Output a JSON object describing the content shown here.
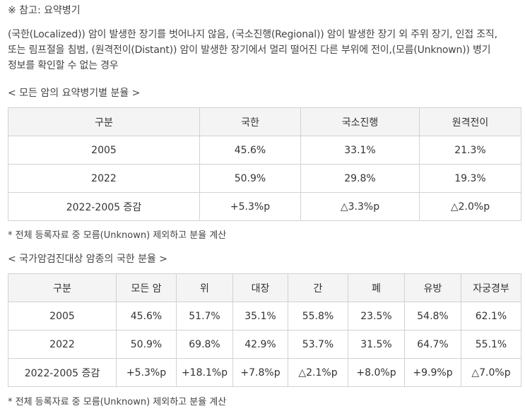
{
  "note": {
    "title": "※ 참고: 요약병기",
    "lines": [
      "(국한(Localized)) 암이 발생한 장기를 벗어나지 않음, (국소진행(Regional)) 암이 발생한 장기 외 주위 장기, 인접 조직,",
      "또는 림프절을 침범, (원격전이(Distant)) 암이 발생한 장기에서 멀리 떨어진 다른 부위에 전이,(모름(Unknown)) 병기",
      "정보를 확인할 수 없는 경우"
    ]
  },
  "table1": {
    "caption": "< 모든 암의 요약병기별 분율 >",
    "headers": [
      "구분",
      "국한",
      "국소진행",
      "원격전이"
    ],
    "rows": [
      [
        "2005",
        "45.6%",
        "33.1%",
        "21.3%"
      ],
      [
        "2022",
        "50.9%",
        "29.8%",
        "19.3%"
      ],
      [
        "2022-2005 증감",
        "+5.3%p",
        "△3.3%p",
        "△2.0%p"
      ]
    ],
    "footnote": "* 전체 등록자료 중 모름(Unknown) 제외하고 분율 계산"
  },
  "table2": {
    "caption": "< 국가암검진대상 암종의 국한 분율 >",
    "headers": [
      "구분",
      "모든 암",
      "위",
      "대장",
      "간",
      "폐",
      "유방",
      "자궁경부"
    ],
    "rows": [
      [
        "2005",
        "45.6%",
        "51.7%",
        "35.1%",
        "55.8%",
        "23.5%",
        "54.8%",
        "62.1%"
      ],
      [
        "2022",
        "50.9%",
        "69.8%",
        "42.9%",
        "53.7%",
        "31.5%",
        "64.7%",
        "55.1%"
      ],
      [
        "2022-2005 증감",
        "+5.3%p",
        "+18.1%p",
        "+7.8%p",
        "△2.1%p",
        "+8.0%p",
        "+9.9%p",
        "△7.0%p"
      ]
    ],
    "footnote": "* 전체 등록자료 중 모름(Unknown) 제외하고 분율 계산"
  }
}
